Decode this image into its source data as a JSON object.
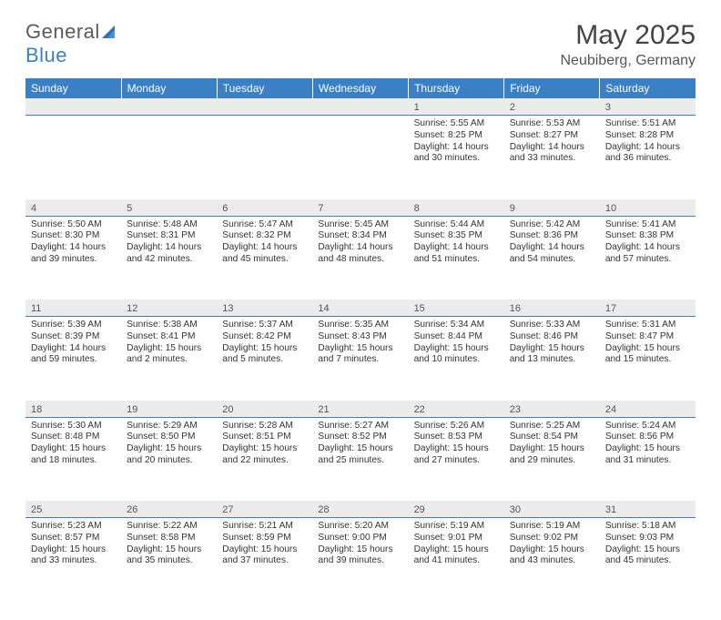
{
  "logo": {
    "word1": "General",
    "word2": "Blue"
  },
  "title": "May 2025",
  "subtitle": "Neubiberg, Germany",
  "colors": {
    "header_bg": "#3b7fc4",
    "header_text": "#ffffff",
    "daynum_bg": "#ececec",
    "rule": "#3b7fc4",
    "body_text": "#333333",
    "title_text": "#444444"
  },
  "weekdays": [
    "Sunday",
    "Monday",
    "Tuesday",
    "Wednesday",
    "Thursday",
    "Friday",
    "Saturday"
  ],
  "weeks": [
    [
      null,
      null,
      null,
      null,
      {
        "n": "1",
        "sr": "Sunrise: 5:55 AM",
        "ss": "Sunset: 8:25 PM",
        "d1": "Daylight: 14 hours",
        "d2": "and 30 minutes."
      },
      {
        "n": "2",
        "sr": "Sunrise: 5:53 AM",
        "ss": "Sunset: 8:27 PM",
        "d1": "Daylight: 14 hours",
        "d2": "and 33 minutes."
      },
      {
        "n": "3",
        "sr": "Sunrise: 5:51 AM",
        "ss": "Sunset: 8:28 PM",
        "d1": "Daylight: 14 hours",
        "d2": "and 36 minutes."
      }
    ],
    [
      {
        "n": "4",
        "sr": "Sunrise: 5:50 AM",
        "ss": "Sunset: 8:30 PM",
        "d1": "Daylight: 14 hours",
        "d2": "and 39 minutes."
      },
      {
        "n": "5",
        "sr": "Sunrise: 5:48 AM",
        "ss": "Sunset: 8:31 PM",
        "d1": "Daylight: 14 hours",
        "d2": "and 42 minutes."
      },
      {
        "n": "6",
        "sr": "Sunrise: 5:47 AM",
        "ss": "Sunset: 8:32 PM",
        "d1": "Daylight: 14 hours",
        "d2": "and 45 minutes."
      },
      {
        "n": "7",
        "sr": "Sunrise: 5:45 AM",
        "ss": "Sunset: 8:34 PM",
        "d1": "Daylight: 14 hours",
        "d2": "and 48 minutes."
      },
      {
        "n": "8",
        "sr": "Sunrise: 5:44 AM",
        "ss": "Sunset: 8:35 PM",
        "d1": "Daylight: 14 hours",
        "d2": "and 51 minutes."
      },
      {
        "n": "9",
        "sr": "Sunrise: 5:42 AM",
        "ss": "Sunset: 8:36 PM",
        "d1": "Daylight: 14 hours",
        "d2": "and 54 minutes."
      },
      {
        "n": "10",
        "sr": "Sunrise: 5:41 AM",
        "ss": "Sunset: 8:38 PM",
        "d1": "Daylight: 14 hours",
        "d2": "and 57 minutes."
      }
    ],
    [
      {
        "n": "11",
        "sr": "Sunrise: 5:39 AM",
        "ss": "Sunset: 8:39 PM",
        "d1": "Daylight: 14 hours",
        "d2": "and 59 minutes."
      },
      {
        "n": "12",
        "sr": "Sunrise: 5:38 AM",
        "ss": "Sunset: 8:41 PM",
        "d1": "Daylight: 15 hours",
        "d2": "and 2 minutes."
      },
      {
        "n": "13",
        "sr": "Sunrise: 5:37 AM",
        "ss": "Sunset: 8:42 PM",
        "d1": "Daylight: 15 hours",
        "d2": "and 5 minutes."
      },
      {
        "n": "14",
        "sr": "Sunrise: 5:35 AM",
        "ss": "Sunset: 8:43 PM",
        "d1": "Daylight: 15 hours",
        "d2": "and 7 minutes."
      },
      {
        "n": "15",
        "sr": "Sunrise: 5:34 AM",
        "ss": "Sunset: 8:44 PM",
        "d1": "Daylight: 15 hours",
        "d2": "and 10 minutes."
      },
      {
        "n": "16",
        "sr": "Sunrise: 5:33 AM",
        "ss": "Sunset: 8:46 PM",
        "d1": "Daylight: 15 hours",
        "d2": "and 13 minutes."
      },
      {
        "n": "17",
        "sr": "Sunrise: 5:31 AM",
        "ss": "Sunset: 8:47 PM",
        "d1": "Daylight: 15 hours",
        "d2": "and 15 minutes."
      }
    ],
    [
      {
        "n": "18",
        "sr": "Sunrise: 5:30 AM",
        "ss": "Sunset: 8:48 PM",
        "d1": "Daylight: 15 hours",
        "d2": "and 18 minutes."
      },
      {
        "n": "19",
        "sr": "Sunrise: 5:29 AM",
        "ss": "Sunset: 8:50 PM",
        "d1": "Daylight: 15 hours",
        "d2": "and 20 minutes."
      },
      {
        "n": "20",
        "sr": "Sunrise: 5:28 AM",
        "ss": "Sunset: 8:51 PM",
        "d1": "Daylight: 15 hours",
        "d2": "and 22 minutes."
      },
      {
        "n": "21",
        "sr": "Sunrise: 5:27 AM",
        "ss": "Sunset: 8:52 PM",
        "d1": "Daylight: 15 hours",
        "d2": "and 25 minutes."
      },
      {
        "n": "22",
        "sr": "Sunrise: 5:26 AM",
        "ss": "Sunset: 8:53 PM",
        "d1": "Daylight: 15 hours",
        "d2": "and 27 minutes."
      },
      {
        "n": "23",
        "sr": "Sunrise: 5:25 AM",
        "ss": "Sunset: 8:54 PM",
        "d1": "Daylight: 15 hours",
        "d2": "and 29 minutes."
      },
      {
        "n": "24",
        "sr": "Sunrise: 5:24 AM",
        "ss": "Sunset: 8:56 PM",
        "d1": "Daylight: 15 hours",
        "d2": "and 31 minutes."
      }
    ],
    [
      {
        "n": "25",
        "sr": "Sunrise: 5:23 AM",
        "ss": "Sunset: 8:57 PM",
        "d1": "Daylight: 15 hours",
        "d2": "and 33 minutes."
      },
      {
        "n": "26",
        "sr": "Sunrise: 5:22 AM",
        "ss": "Sunset: 8:58 PM",
        "d1": "Daylight: 15 hours",
        "d2": "and 35 minutes."
      },
      {
        "n": "27",
        "sr": "Sunrise: 5:21 AM",
        "ss": "Sunset: 8:59 PM",
        "d1": "Daylight: 15 hours",
        "d2": "and 37 minutes."
      },
      {
        "n": "28",
        "sr": "Sunrise: 5:20 AM",
        "ss": "Sunset: 9:00 PM",
        "d1": "Daylight: 15 hours",
        "d2": "and 39 minutes."
      },
      {
        "n": "29",
        "sr": "Sunrise: 5:19 AM",
        "ss": "Sunset: 9:01 PM",
        "d1": "Daylight: 15 hours",
        "d2": "and 41 minutes."
      },
      {
        "n": "30",
        "sr": "Sunrise: 5:19 AM",
        "ss": "Sunset: 9:02 PM",
        "d1": "Daylight: 15 hours",
        "d2": "and 43 minutes."
      },
      {
        "n": "31",
        "sr": "Sunrise: 5:18 AM",
        "ss": "Sunset: 9:03 PM",
        "d1": "Daylight: 15 hours",
        "d2": "and 45 minutes."
      }
    ]
  ]
}
